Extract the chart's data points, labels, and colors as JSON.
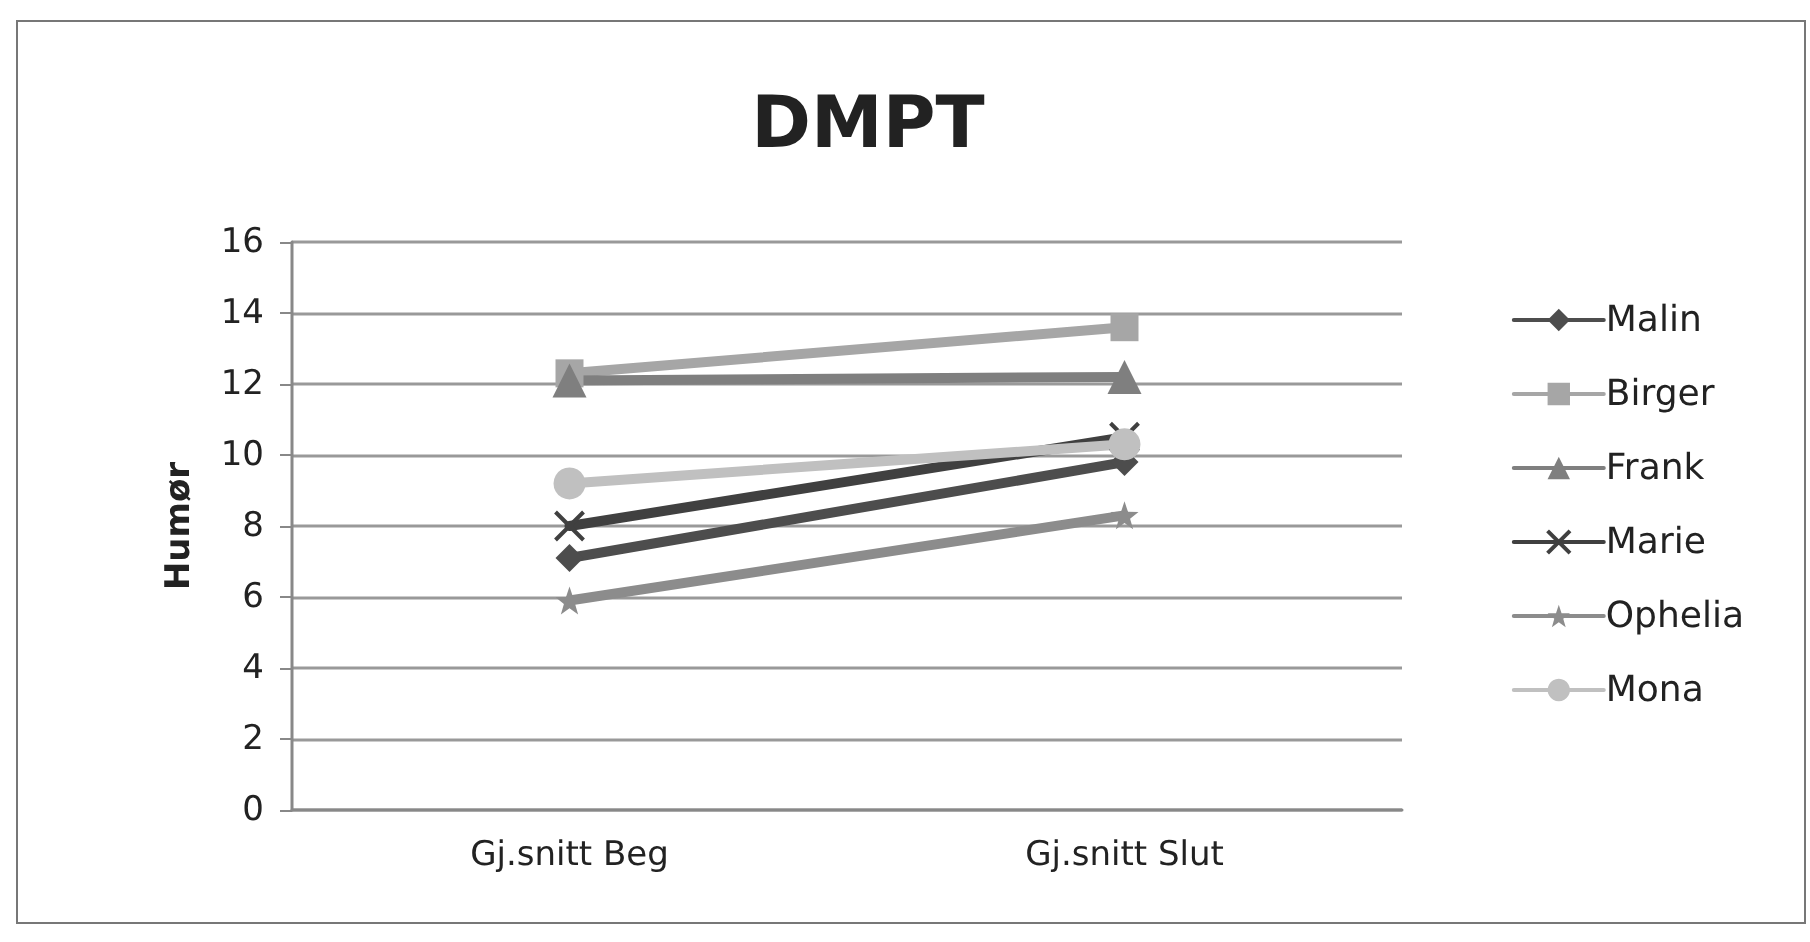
{
  "chart_data": {
    "type": "line",
    "title": "DMPT",
    "ylabel": "Humør",
    "categories": [
      "Gj.snitt Beg",
      "Gj.snitt Slut"
    ],
    "series": [
      {
        "name": "Malin",
        "color": "#4d4d4d",
        "marker": "diamond",
        "values": [
          7.1,
          9.8
        ]
      },
      {
        "name": "Birger",
        "color": "#a6a6a6",
        "marker": "square",
        "values": [
          12.3,
          13.6
        ]
      },
      {
        "name": "Frank",
        "color": "#7f7f7f",
        "marker": "triangle",
        "values": [
          12.1,
          12.2
        ]
      },
      {
        "name": "Marie",
        "color": "#404040",
        "marker": "cross",
        "values": [
          8,
          10.5
        ]
      },
      {
        "name": "Ophelia",
        "color": "#8c8c8c",
        "marker": "star",
        "values": [
          5.9,
          8.3
        ]
      },
      {
        "name": "Mona",
        "color": "#c0c0c0",
        "marker": "circle",
        "values": [
          9.2,
          10.3
        ]
      }
    ],
    "ylim": [
      0,
      16
    ],
    "yticks": [
      0,
      2,
      4,
      6,
      8,
      10,
      12,
      14,
      16
    ],
    "grid": "y",
    "legend": "right"
  }
}
